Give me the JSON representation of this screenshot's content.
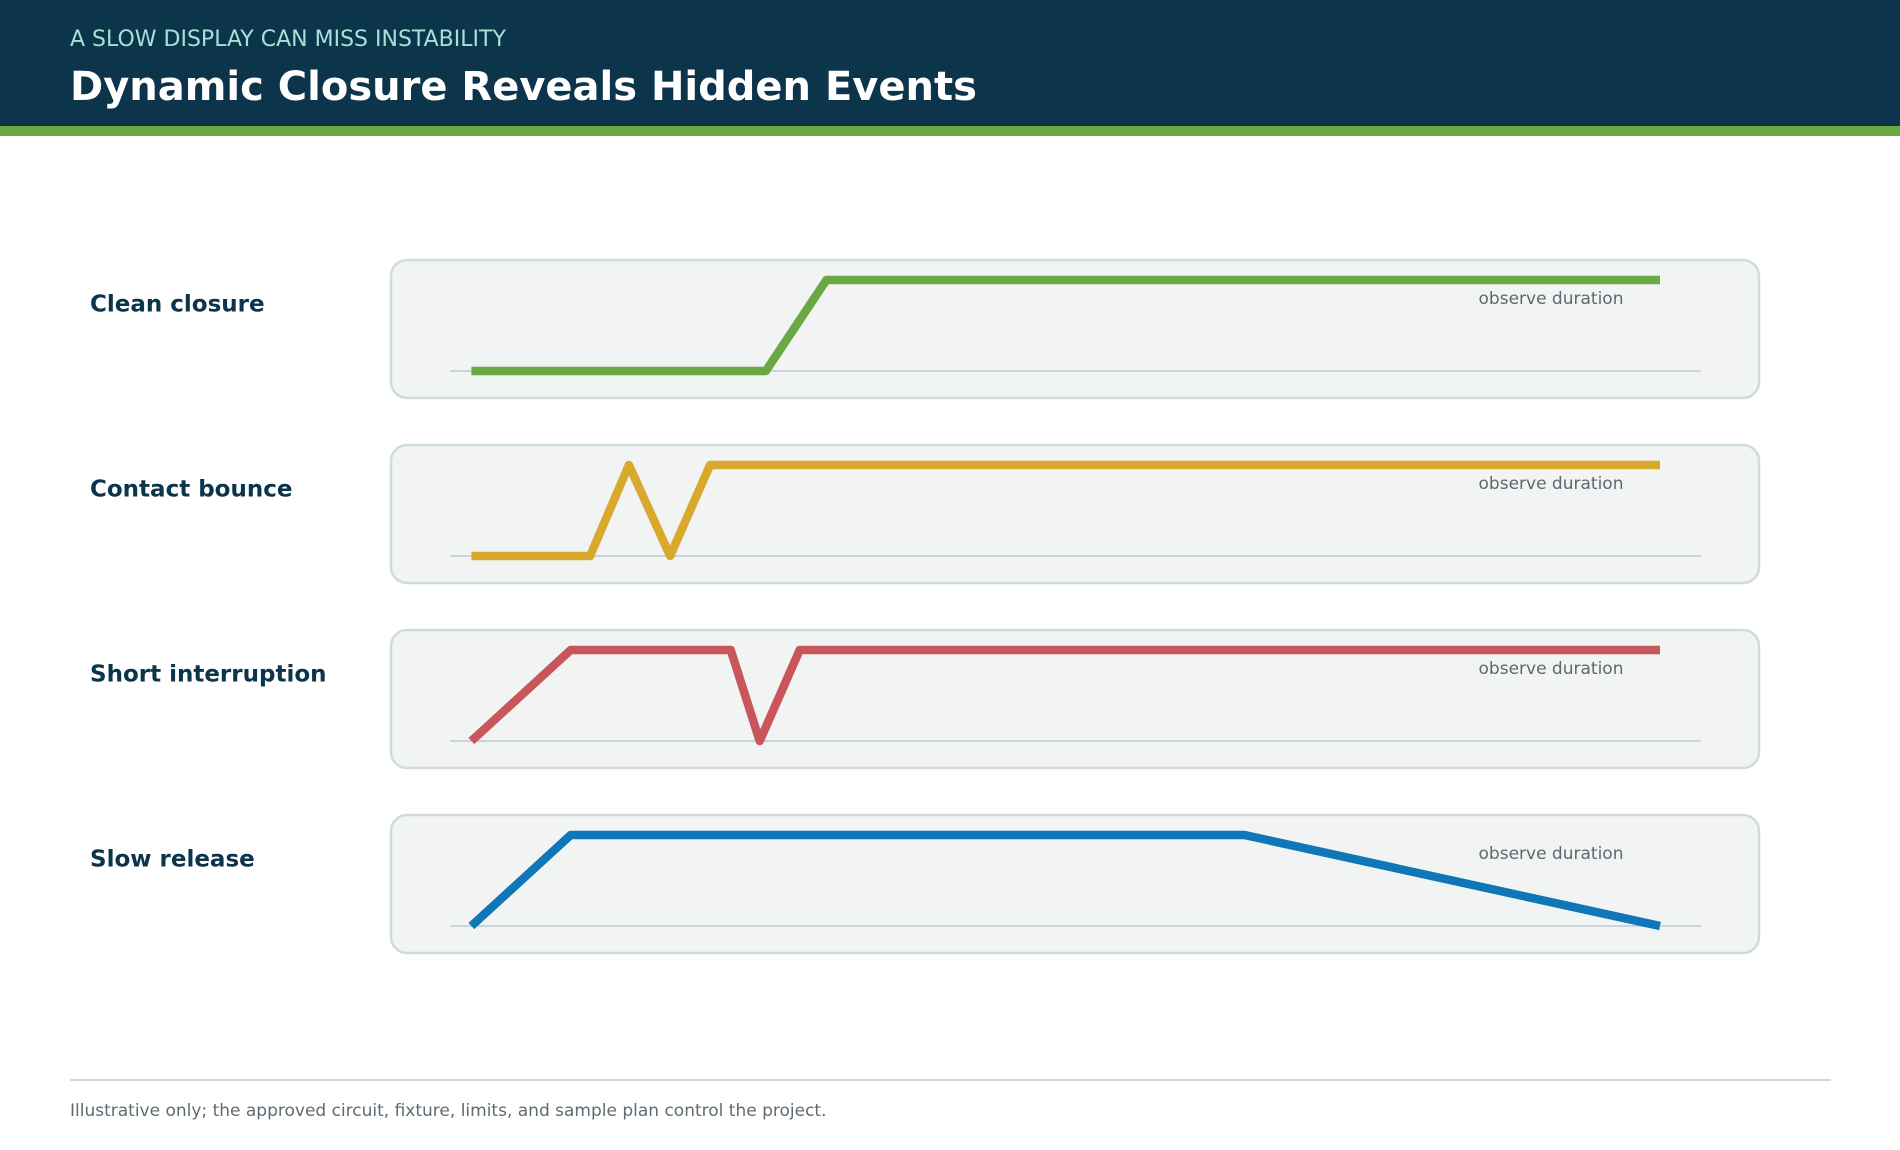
{
  "header": {
    "kicker": "A SLOW DISPLAY CAN MISS INSTABILITY",
    "title": "Dynamic Closure Reveals Hidden Events"
  },
  "rows": [
    {
      "label": "Clean closure",
      "note": "observe duration"
    },
    {
      "label": "Contact bounce",
      "note": "observe duration"
    },
    {
      "label": "Short interruption",
      "note": "observe duration"
    },
    {
      "label": "Slow release",
      "note": "observe duration"
    }
  ],
  "footer": {
    "note": "Illustrative only; the approved circuit, fixture, limits, and sample plan control the project."
  }
}
